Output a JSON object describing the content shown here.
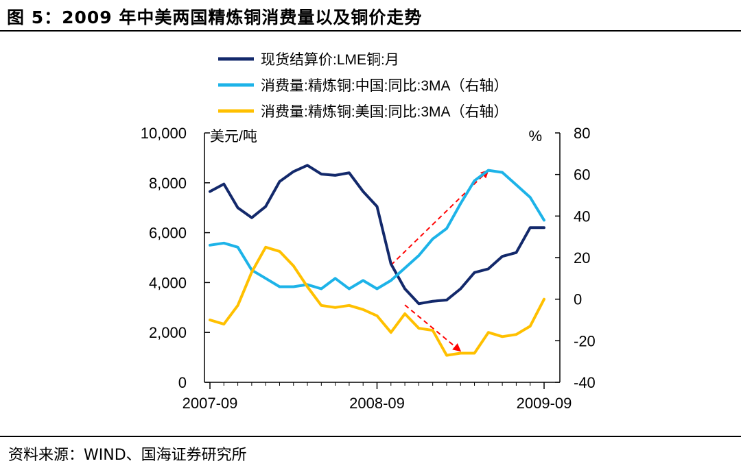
{
  "header": {
    "title": "图 5：2009 年中美两国精炼铜消费量以及铜价走势"
  },
  "footer": {
    "source": "资料来源：WIND、国海证券研究所"
  },
  "colors": {
    "lme": "#13296b",
    "china": "#1db3e8",
    "us": "#ffc000",
    "arrow": "#ff0000"
  },
  "chart_data": {
    "type": "line",
    "x": [
      "2007-09",
      "2007-10",
      "2007-11",
      "2007-12",
      "2008-01",
      "2008-02",
      "2008-03",
      "2008-04",
      "2008-05",
      "2008-06",
      "2008-07",
      "2008-08",
      "2008-09",
      "2008-10",
      "2008-11",
      "2008-12",
      "2009-01",
      "2009-02",
      "2009-03",
      "2009-04",
      "2009-05",
      "2009-06",
      "2009-07",
      "2009-08",
      "2009-09"
    ],
    "x_tick_labels": [
      "2007-09",
      "2008-09",
      "2009-09"
    ],
    "left_axis": {
      "unit_label": "美元/吨",
      "ylim": [
        0,
        10000
      ],
      "ticks": [
        "0",
        "2,000",
        "4,000",
        "6,000",
        "8,000",
        "10,000"
      ]
    },
    "right_axis": {
      "unit_label": "%",
      "ylim": [
        -40,
        80
      ],
      "ticks": [
        "-40",
        "-20",
        "0",
        "20",
        "40",
        "60",
        "80"
      ]
    },
    "series": [
      {
        "name": "现货结算价:LME铜:月",
        "axis": "left",
        "color_key": "lme",
        "values": [
          7650,
          7950,
          7000,
          6600,
          7050,
          8050,
          8450,
          8700,
          8350,
          8300,
          8400,
          7650,
          7050,
          4750,
          3750,
          3150,
          3250,
          3300,
          3750,
          4400,
          4550,
          5050,
          5200,
          6200,
          6200
        ]
      },
      {
        "name": "消费量:精炼铜:中国:同比:3MA（右轴）",
        "axis": "right",
        "color_key": "china",
        "values": [
          26,
          27,
          25,
          14,
          10,
          6,
          6,
          7,
          5,
          10,
          5,
          9,
          5,
          9,
          15,
          21,
          29,
          34,
          46,
          57,
          62,
          61,
          55,
          49,
          38
        ]
      },
      {
        "name": "消费量:精炼铜:美国:同比:3MA（右轴）",
        "axis": "right",
        "color_key": "us",
        "values": [
          -10,
          -12,
          -3,
          13,
          25,
          23,
          16,
          6,
          -3,
          -4,
          -3,
          -5,
          -8,
          -16,
          -7,
          -14,
          -15,
          -27,
          -26,
          -26,
          -16,
          -18,
          -17,
          -13,
          0
        ]
      }
    ],
    "annotations": [
      {
        "type": "arrow",
        "style": "dashed",
        "from": {
          "x": "2008-10",
          "y_left": 4700
        },
        "to": {
          "x": "2009-05",
          "y_left": 8500
        }
      },
      {
        "type": "arrow",
        "style": "dashed",
        "from": {
          "x": "2008-11",
          "y_left": 3100
        },
        "to": {
          "x": "2009-03",
          "y_left": 1250
        }
      }
    ],
    "legend_position": "top",
    "grid": false
  }
}
